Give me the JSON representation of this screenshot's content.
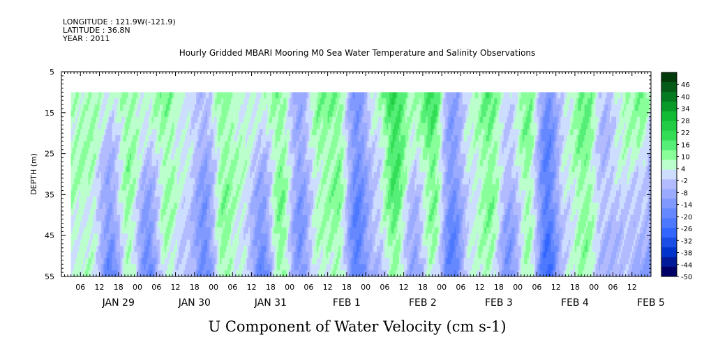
{
  "header": {
    "longitude": "LONGITUDE : 121.9W(-121.9)",
    "latitude": "LATITUDE : 36.8N",
    "year": "YEAR : 2011"
  },
  "chart_data": {
    "type": "heatmap",
    "title": "Hourly Gridded MBARI Mooring M0 Sea Water Temperature and Salinity Observations",
    "xlabel": "U Component of Water Velocity (cm s-1)",
    "ylabel": "DEPTH (m)",
    "y_axis": {
      "range": [
        5,
        55
      ],
      "inverted": true,
      "ticks": [
        "5",
        "15",
        "25",
        "35",
        "45",
        "55"
      ],
      "data_range": [
        10,
        55
      ]
    },
    "x_axis": {
      "start": "2011-01-28T06:00",
      "end": "2011-02-05T00:00",
      "data_start": "2011-01-28T09:00",
      "data_end": "2011-02-05T00:00",
      "hour_ticks": [
        "06",
        "12",
        "18",
        "00",
        "06",
        "12",
        "18",
        "00",
        "06",
        "12",
        "18",
        "00",
        "06",
        "12",
        "18",
        "00",
        "06",
        "12",
        "18",
        "00",
        "06",
        "12",
        "18",
        "00",
        "06",
        "12",
        "18",
        "00",
        "06",
        "12",
        "18",
        "00"
      ],
      "day_labels": [
        "JAN 29",
        "JAN 30",
        "JAN 31",
        "FEB  1",
        "FEB  2",
        "FEB  3",
        "FEB  4",
        "FEB  5"
      ]
    },
    "colorbar": {
      "levels": [
        "46",
        "40",
        "34",
        "28",
        "22",
        "16",
        "10",
        "4",
        "-2",
        "-8",
        "-14",
        "-20",
        "-26",
        "-32",
        "-38",
        "-44",
        "-50"
      ],
      "min": -50,
      "max": 52,
      "colors": [
        "#000066",
        "#001a99",
        "#0033cc",
        "#1a4de6",
        "#3366ff",
        "#4d79ff",
        "#6688ff",
        "#8099ff",
        "#99aaff",
        "#b3bbff",
        "#ccddff",
        "#bbffcc",
        "#88ff99",
        "#55ee77",
        "#33dd55",
        "#22cc44",
        "#11bb33",
        "#0a9a2a",
        "#067a20",
        "#045a16",
        "#023a0c"
      ]
    },
    "pattern": {
      "description_free": true,
      "time_hours": [
        9,
        15,
        21,
        27,
        33,
        39,
        45,
        51,
        57,
        63,
        69,
        75,
        81,
        87,
        93,
        99,
        105,
        111,
        117,
        123,
        129,
        135,
        141,
        147,
        153,
        159,
        165,
        171,
        177,
        183,
        189
      ],
      "surface_values": [
        8,
        2,
        10,
        6,
        10,
        4,
        -4,
        10,
        6,
        4,
        10,
        -8,
        10,
        12,
        -14,
        4,
        22,
        8,
        18,
        -10,
        4,
        14,
        2,
        12,
        -16,
        4,
        14,
        -4,
        8,
        12,
        -14
      ],
      "bottom_values": [
        4,
        -20,
        8,
        -22,
        6,
        -2,
        -20,
        10,
        2,
        -22,
        12,
        -16,
        4,
        8,
        -22,
        -6,
        10,
        -14,
        6,
        -22,
        2,
        8,
        -16,
        6,
        -26,
        0,
        8,
        -4,
        -6,
        -12,
        -20
      ]
    }
  }
}
